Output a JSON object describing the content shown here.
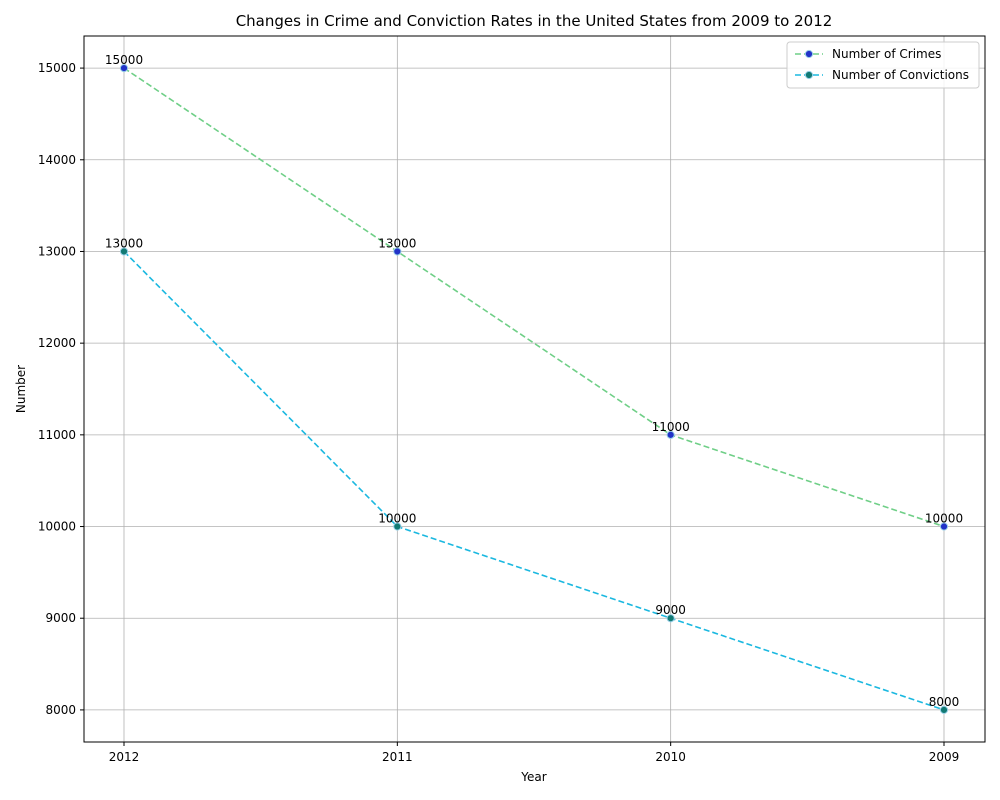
{
  "chart_data": {
    "type": "line",
    "title": "Changes in Crime and Conviction Rates in the United States from 2009 to 2012",
    "xlabel": "Year",
    "ylabel": "Number",
    "categories": [
      "2012",
      "2011",
      "2010",
      "2009"
    ],
    "ylim": [
      7650,
      15350
    ],
    "yticks": [
      8000,
      9000,
      10000,
      11000,
      12000,
      13000,
      14000,
      15000
    ],
    "grid": true,
    "legend_position": "top-right",
    "series": [
      {
        "name": "Number of Crimes",
        "values": [
          15000,
          13000,
          11000,
          10000
        ],
        "line_color": "#6fcf87",
        "marker_color": "#2233c8",
        "line_style": "dashed"
      },
      {
        "name": "Number of Convictions",
        "values": [
          13000,
          10000,
          9000,
          8000
        ],
        "line_color": "#1ab8e0",
        "marker_color": "#127a74",
        "line_style": "dashed"
      }
    ]
  }
}
